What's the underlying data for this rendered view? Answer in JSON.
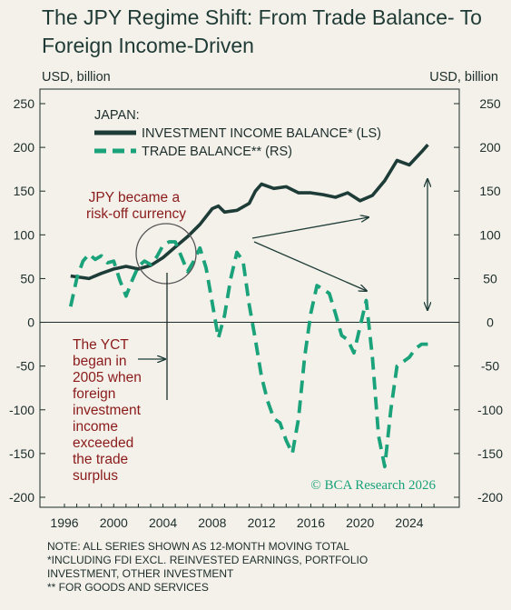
{
  "title": "The JPY Regime Shift: From Trade Balance- To Foreign Income-Driven",
  "unit_left": "USD, billion",
  "unit_right": "USD, billion",
  "legend": {
    "heading": "JAPAN:",
    "item1": "INVESTMENT INCOME BALANCE* (LS)",
    "item2": "TRADE BALANCE** (RS)"
  },
  "annotations": {
    "riskoff": [
      "JPY became a",
      "risk-off currency"
    ],
    "yct": [
      "The YCT",
      "began in",
      "2005 when",
      "foreign",
      "investment",
      "income",
      "exceeded",
      "the trade",
      "surplus"
    ],
    "source": "© BCA Research 2026"
  },
  "notes": [
    "NOTE: ALL SERIES SHOWN AS 12-MONTH MOVING TOTAL",
    "*INCLUDING FDI EXCL. REINVESTED EARNINGS, PORTFOLIO",
    "INVESTMENT, OTHER INVESTMENT",
    "** FOR GOODS AND SERVICES"
  ],
  "colors": {
    "income": "#1e3c37",
    "trade": "#1aa27a",
    "annotation_red": "#8b1a1a",
    "source_green": "#1aa27a"
  },
  "chart_data": {
    "type": "line",
    "xlim": [
      1996,
      2026.6
    ],
    "ylim": [
      -200,
      250
    ],
    "yticks": [
      250,
      200,
      150,
      100,
      50,
      0,
      -50,
      -100,
      -150,
      -200
    ],
    "xticks": [
      1996,
      2000,
      2004,
      2008,
      2012,
      2016,
      2020,
      2024
    ],
    "series": [
      {
        "name": "INVESTMENT INCOME BALANCE* (LS)",
        "axis": "left",
        "style": "solid",
        "x": [
          1996.5,
          1997,
          1998,
          1999,
          2000,
          2001,
          2002,
          2003,
          2004,
          2005,
          2006,
          2007,
          2008,
          2008.5,
          2009,
          2010,
          2011,
          2011.5,
          2012,
          2013,
          2014,
          2015,
          2016,
          2017,
          2018,
          2019,
          2020,
          2021,
          2022,
          2023,
          2024,
          2025,
          2025.5
        ],
        "values": [
          53,
          52,
          50,
          56,
          61,
          64,
          61,
          65,
          74,
          86,
          98,
          112,
          130,
          133,
          126,
          128,
          136,
          150,
          158,
          153,
          155,
          148,
          148,
          146,
          143,
          148,
          139,
          145,
          162,
          185,
          180,
          195,
          203
        ]
      },
      {
        "name": "TRADE BALANCE** (RS)",
        "axis": "right",
        "style": "dashed",
        "x": [
          1996.5,
          1997,
          1997.5,
          1998,
          1998.5,
          1999,
          1999.5,
          2000,
          2000.5,
          2001,
          2001.5,
          2002,
          2002.5,
          2003,
          2003.5,
          2004,
          2004.5,
          2005,
          2005.5,
          2006,
          2006.5,
          2007,
          2007.5,
          2008,
          2008.5,
          2009,
          2009.5,
          2010,
          2010.5,
          2011,
          2011.5,
          2012,
          2012.5,
          2013,
          2013.5,
          2014,
          2014.5,
          2015,
          2015.5,
          2016,
          2016.5,
          2017,
          2017.5,
          2018,
          2018.5,
          2019,
          2019.5,
          2020,
          2020.5,
          2021,
          2021.5,
          2022,
          2022.5,
          2023,
          2023.5,
          2024,
          2024.5,
          2025,
          2025.5
        ],
        "values": [
          18,
          50,
          70,
          78,
          72,
          76,
          68,
          70,
          48,
          30,
          48,
          64,
          70,
          66,
          75,
          88,
          92,
          92,
          75,
          58,
          70,
          85,
          62,
          22,
          -18,
          8,
          50,
          80,
          70,
          20,
          -20,
          -62,
          -90,
          -110,
          -115,
          -135,
          -150,
          -110,
          -40,
          10,
          42,
          38,
          33,
          10,
          -15,
          -20,
          -35,
          -5,
          25,
          -40,
          -130,
          -165,
          -100,
          -50,
          -45,
          -40,
          -30,
          -25,
          -25
        ]
      }
    ]
  }
}
